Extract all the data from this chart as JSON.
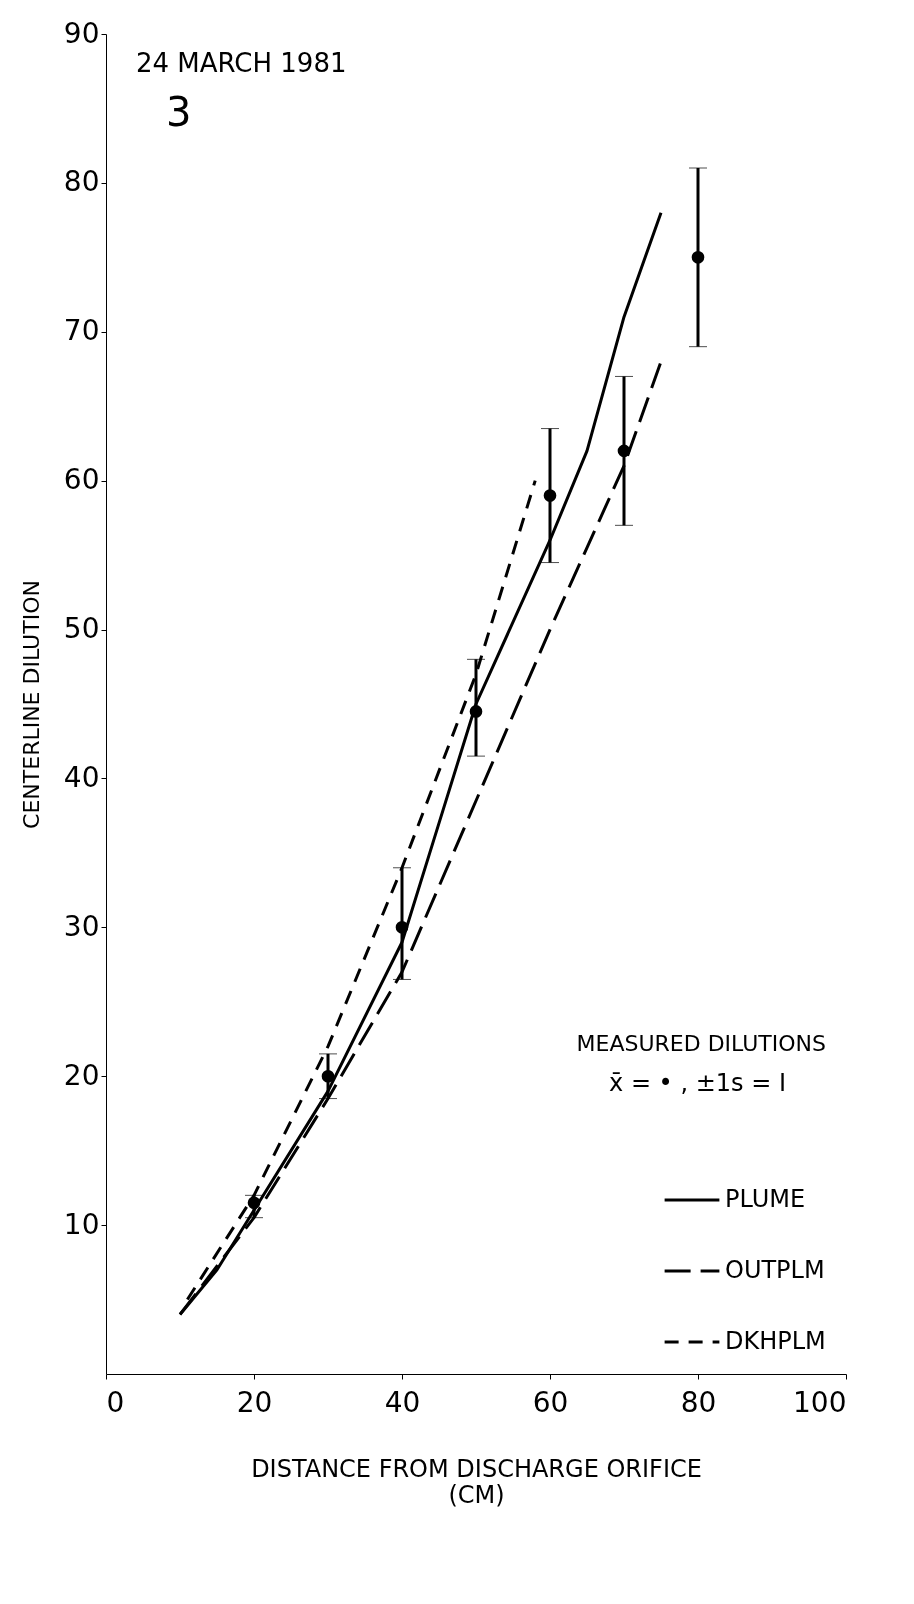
{
  "chart_data": {
    "type": "line",
    "xlabel": "DISTANCE FROM DISCHARGE ORIFICE\n(CM)",
    "ylabel": "CENTERLINE DILUTION",
    "xlim": [
      0,
      100
    ],
    "xticks": [
      0,
      20,
      40,
      60,
      80,
      100
    ],
    "ylim": [
      0,
      90
    ],
    "yticks": [
      10,
      20,
      30,
      40,
      50,
      60,
      70,
      80,
      90
    ],
    "grid": false,
    "legend": "bottom right",
    "annotations": [
      "24 MARCH 1981",
      "3",
      "MEASURED DILUTIONS",
      "x̄ = • , ±1s = I"
    ],
    "series": [
      {
        "type": "scatter",
        "color": "#000000",
        "marker": "circle",
        "x": [
          20,
          30,
          40,
          50,
          60,
          70,
          80
        ],
        "values": [
          11.5,
          20,
          30,
          44.5,
          59,
          62,
          75
        ],
        "errors": [
          [
            10.5,
            12
          ],
          [
            18.5,
            21.5
          ],
          [
            26.5,
            34
          ],
          [
            41.5,
            48
          ],
          [
            54.5,
            63.5
          ],
          [
            57,
            67
          ],
          [
            69,
            81
          ]
        ]
      },
      {
        "type": "line",
        "name": "PLUME",
        "color": "#000000",
        "line_style": "solid",
        "x": [
          10,
          15,
          20,
          30,
          40,
          45,
          50,
          60,
          65,
          70,
          75
        ],
        "values": [
          4,
          7,
          11,
          19,
          29,
          37,
          45,
          56,
          62,
          71,
          78
        ]
      },
      {
        "type": "line",
        "name": "OUTPLM",
        "color": "#000000",
        "line_style": "dashed",
        "x": [
          10,
          20,
          30,
          40,
          50,
          60,
          70,
          75
        ],
        "values": [
          4,
          10.5,
          18.5,
          27,
          38.5,
          50,
          61,
          68
        ]
      },
      {
        "type": "line",
        "name": "DKHPLM",
        "color": "#000000",
        "line_style": "dashed",
        "x": [
          11,
          20,
          30,
          40,
          50,
          58
        ],
        "values": [
          5,
          12,
          22,
          34,
          47,
          60
        ]
      }
    ]
  }
}
